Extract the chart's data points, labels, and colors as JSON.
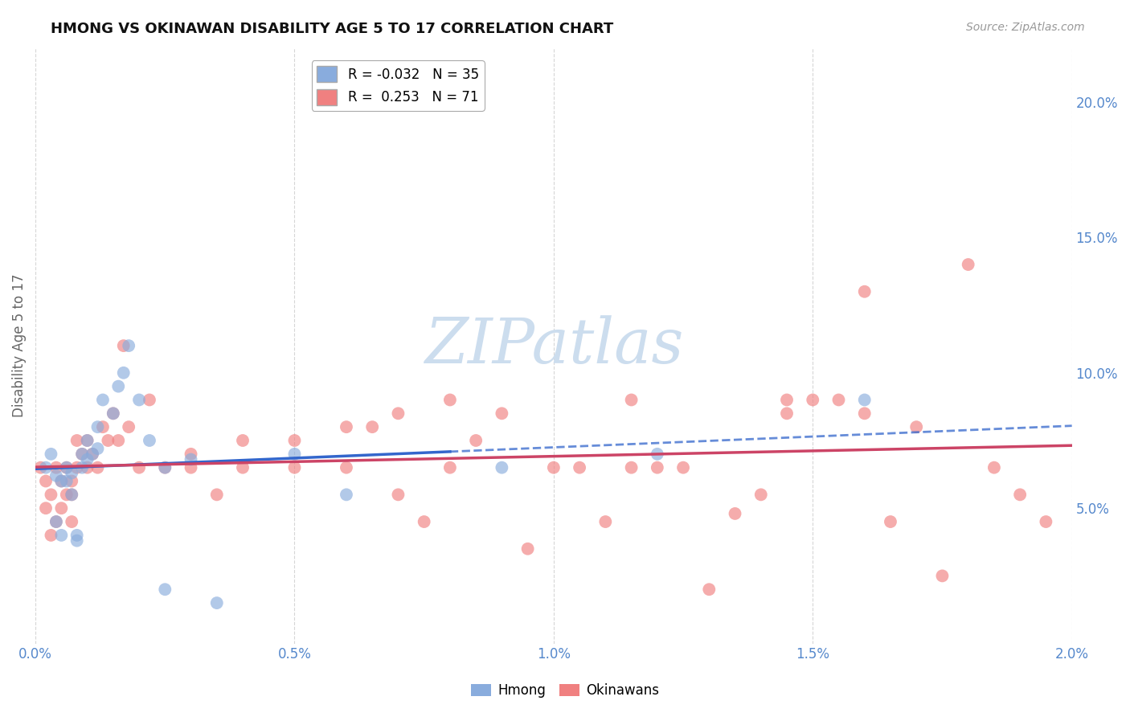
{
  "title": "HMONG VS OKINAWAN DISABILITY AGE 5 TO 17 CORRELATION CHART",
  "source": "Source: ZipAtlas.com",
  "ylabel": "Disability Age 5 to 17",
  "xlim": [
    0.0,
    0.02
  ],
  "ylim": [
    0.0,
    0.22
  ],
  "yticks": [
    0.05,
    0.1,
    0.15,
    0.2
  ],
  "ytick_labels": [
    "5.0%",
    "10.0%",
    "15.0%",
    "20.0%"
  ],
  "xticks": [
    0.0,
    0.005,
    0.01,
    0.015,
    0.02
  ],
  "xtick_labels": [
    "0.0%",
    "0.5%",
    "1.0%",
    "1.5%",
    "2.0%"
  ],
  "hmong_R": -0.032,
  "hmong_N": 35,
  "okinawan_R": 0.253,
  "okinawan_N": 71,
  "hmong_color": "#89ACDD",
  "okinawan_color": "#F08080",
  "trend_blue": "#3366CC",
  "trend_pink": "#CC4466",
  "background_color": "#FFFFFF",
  "grid_color": "#CCCCCC",
  "axis_color": "#5588CC",
  "watermark_color": "#CCDDEE",
  "hmong_x": [
    0.0002,
    0.0003,
    0.0004,
    0.0004,
    0.0005,
    0.0005,
    0.0006,
    0.0006,
    0.0007,
    0.0007,
    0.0008,
    0.0008,
    0.0009,
    0.0009,
    0.001,
    0.001,
    0.0011,
    0.0012,
    0.0012,
    0.0013,
    0.0015,
    0.0016,
    0.0017,
    0.0018,
    0.002,
    0.0022,
    0.0025,
    0.0025,
    0.003,
    0.0035,
    0.005,
    0.006,
    0.009,
    0.012,
    0.016
  ],
  "hmong_y": [
    0.065,
    0.07,
    0.062,
    0.045,
    0.04,
    0.06,
    0.065,
    0.06,
    0.055,
    0.063,
    0.04,
    0.038,
    0.07,
    0.065,
    0.075,
    0.068,
    0.07,
    0.08,
    0.072,
    0.09,
    0.085,
    0.095,
    0.1,
    0.11,
    0.09,
    0.075,
    0.065,
    0.02,
    0.068,
    0.015,
    0.07,
    0.055,
    0.065,
    0.07,
    0.09
  ],
  "okinawan_x": [
    0.0001,
    0.0002,
    0.0002,
    0.0003,
    0.0003,
    0.0004,
    0.0004,
    0.0005,
    0.0005,
    0.0006,
    0.0006,
    0.0007,
    0.0007,
    0.0007,
    0.0008,
    0.0008,
    0.0009,
    0.001,
    0.001,
    0.0011,
    0.0012,
    0.0013,
    0.0014,
    0.0015,
    0.0016,
    0.0017,
    0.0018,
    0.002,
    0.0022,
    0.0025,
    0.003,
    0.003,
    0.0035,
    0.004,
    0.004,
    0.005,
    0.005,
    0.006,
    0.006,
    0.007,
    0.007,
    0.008,
    0.008,
    0.009,
    0.01,
    0.011,
    0.012,
    0.013,
    0.014,
    0.015,
    0.016,
    0.016,
    0.017,
    0.018,
    0.019,
    0.0065,
    0.0075,
    0.0085,
    0.0095,
    0.0105,
    0.0115,
    0.0125,
    0.0135,
    0.0145,
    0.0155,
    0.0165,
    0.0175,
    0.0185,
    0.0195,
    0.0115,
    0.0145
  ],
  "okinawan_y": [
    0.065,
    0.05,
    0.06,
    0.04,
    0.055,
    0.045,
    0.065,
    0.06,
    0.05,
    0.055,
    0.065,
    0.045,
    0.06,
    0.055,
    0.065,
    0.075,
    0.07,
    0.065,
    0.075,
    0.07,
    0.065,
    0.08,
    0.075,
    0.085,
    0.075,
    0.11,
    0.08,
    0.065,
    0.09,
    0.065,
    0.07,
    0.065,
    0.055,
    0.075,
    0.065,
    0.065,
    0.075,
    0.065,
    0.08,
    0.085,
    0.055,
    0.09,
    0.065,
    0.085,
    0.065,
    0.045,
    0.065,
    0.02,
    0.055,
    0.09,
    0.085,
    0.13,
    0.08,
    0.14,
    0.055,
    0.08,
    0.045,
    0.075,
    0.035,
    0.065,
    0.065,
    0.065,
    0.048,
    0.09,
    0.09,
    0.045,
    0.025,
    0.065,
    0.045,
    0.09,
    0.085
  ]
}
